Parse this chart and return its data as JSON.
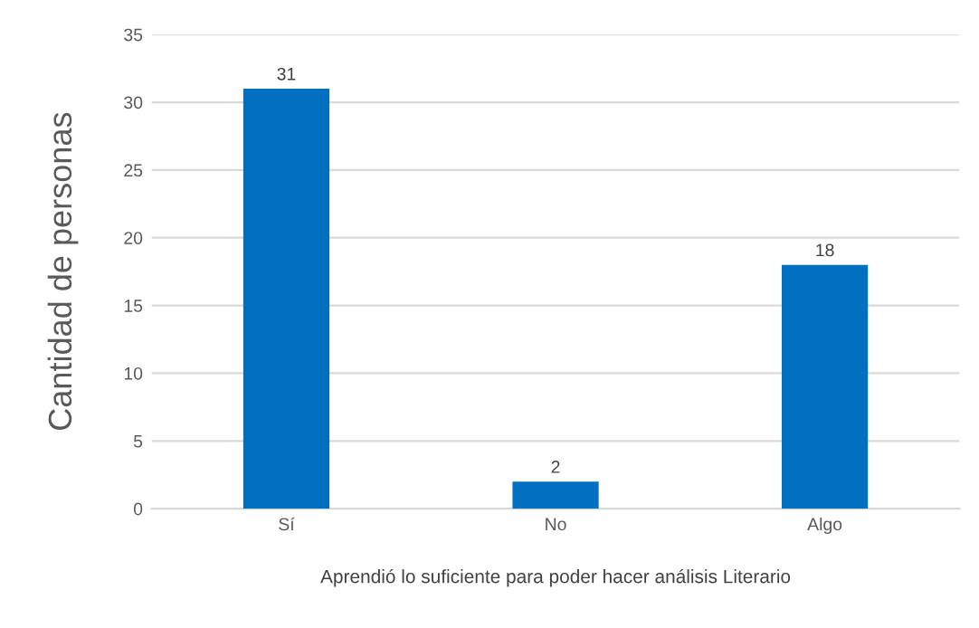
{
  "chart_data": {
    "type": "bar",
    "xlabel": "Aprendió lo suficiente para poder hacer análisis Literario",
    "ylabel": "Cantidad de personas",
    "categories": [
      "Sí",
      "No",
      "Algo"
    ],
    "values": [
      31,
      2,
      18
    ],
    "color": "#0070c0",
    "ylim": [
      0,
      35
    ],
    "yticks": [
      0,
      5,
      10,
      15,
      20,
      25,
      30,
      35
    ],
    "grid": "y",
    "data_labels": true
  }
}
